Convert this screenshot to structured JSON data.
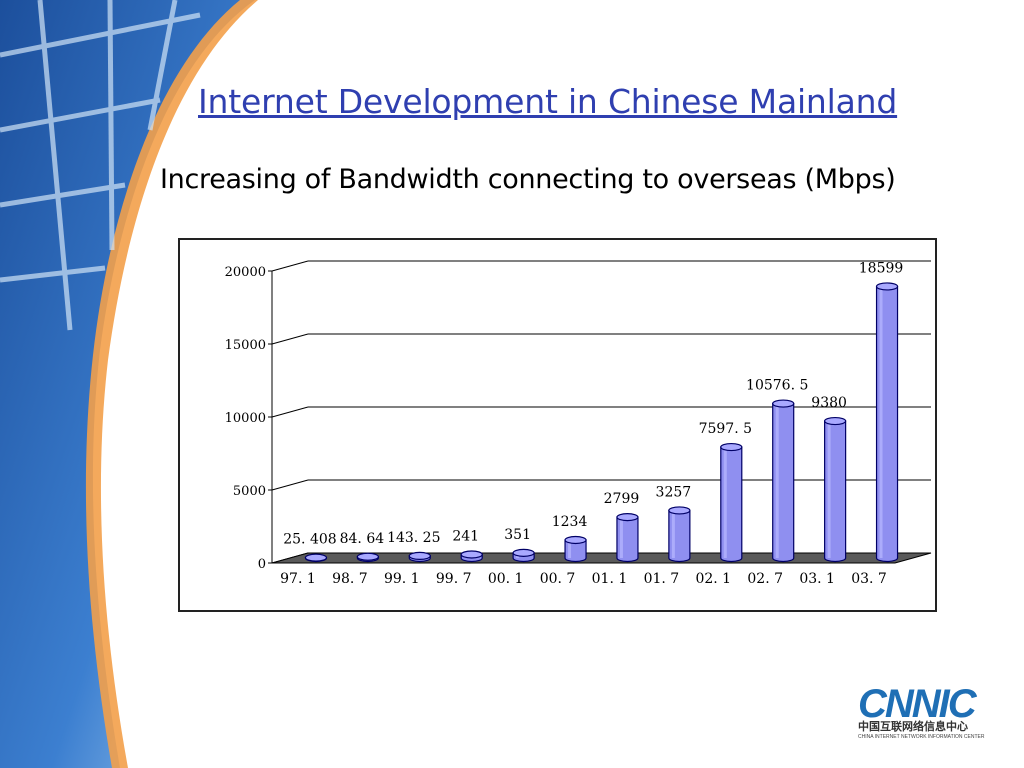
{
  "slide": {
    "title": "Internet Development in Chinese Mainland",
    "subtitle": "Increasing of Bandwidth connecting to overseas (Mbps)"
  },
  "logo": {
    "mark": "CNNIC",
    "cn": "中国互联网络信息中心",
    "en": "CHINA INTERNET NETWORK INFORMATION CENTER"
  },
  "chart_data": {
    "type": "bar",
    "categories": [
      "97. 1",
      "98. 7",
      "99. 1",
      "99. 7",
      "00. 1",
      "00. 7",
      "01. 1",
      "01. 7",
      "02. 1",
      "02. 7",
      "03. 1",
      "03. 7"
    ],
    "values": [
      25.408,
      84.64,
      143.25,
      241,
      351,
      1234,
      2799,
      3257,
      7597.5,
      10576.5,
      9380,
      18599
    ],
    "value_labels": [
      "25. 408",
      "84. 64",
      "143. 25",
      "241",
      "351",
      "1234",
      "2799",
      "3257",
      "7597. 5",
      "10576. 5",
      "9380",
      "18599"
    ],
    "yticks": [
      0,
      5000,
      10000,
      15000,
      20000
    ],
    "ylim": [
      0,
      20000
    ],
    "grid": true,
    "bar_color": "#8f8ff0",
    "bar_edge_color": "#000066",
    "floor_color": "#5a5a5a"
  },
  "colors": {
    "title": "#2f3fb0",
    "deco_dark": "#1c4f9c",
    "deco_light": "#cfe3f6",
    "deco_orange": "#f3a04a"
  }
}
